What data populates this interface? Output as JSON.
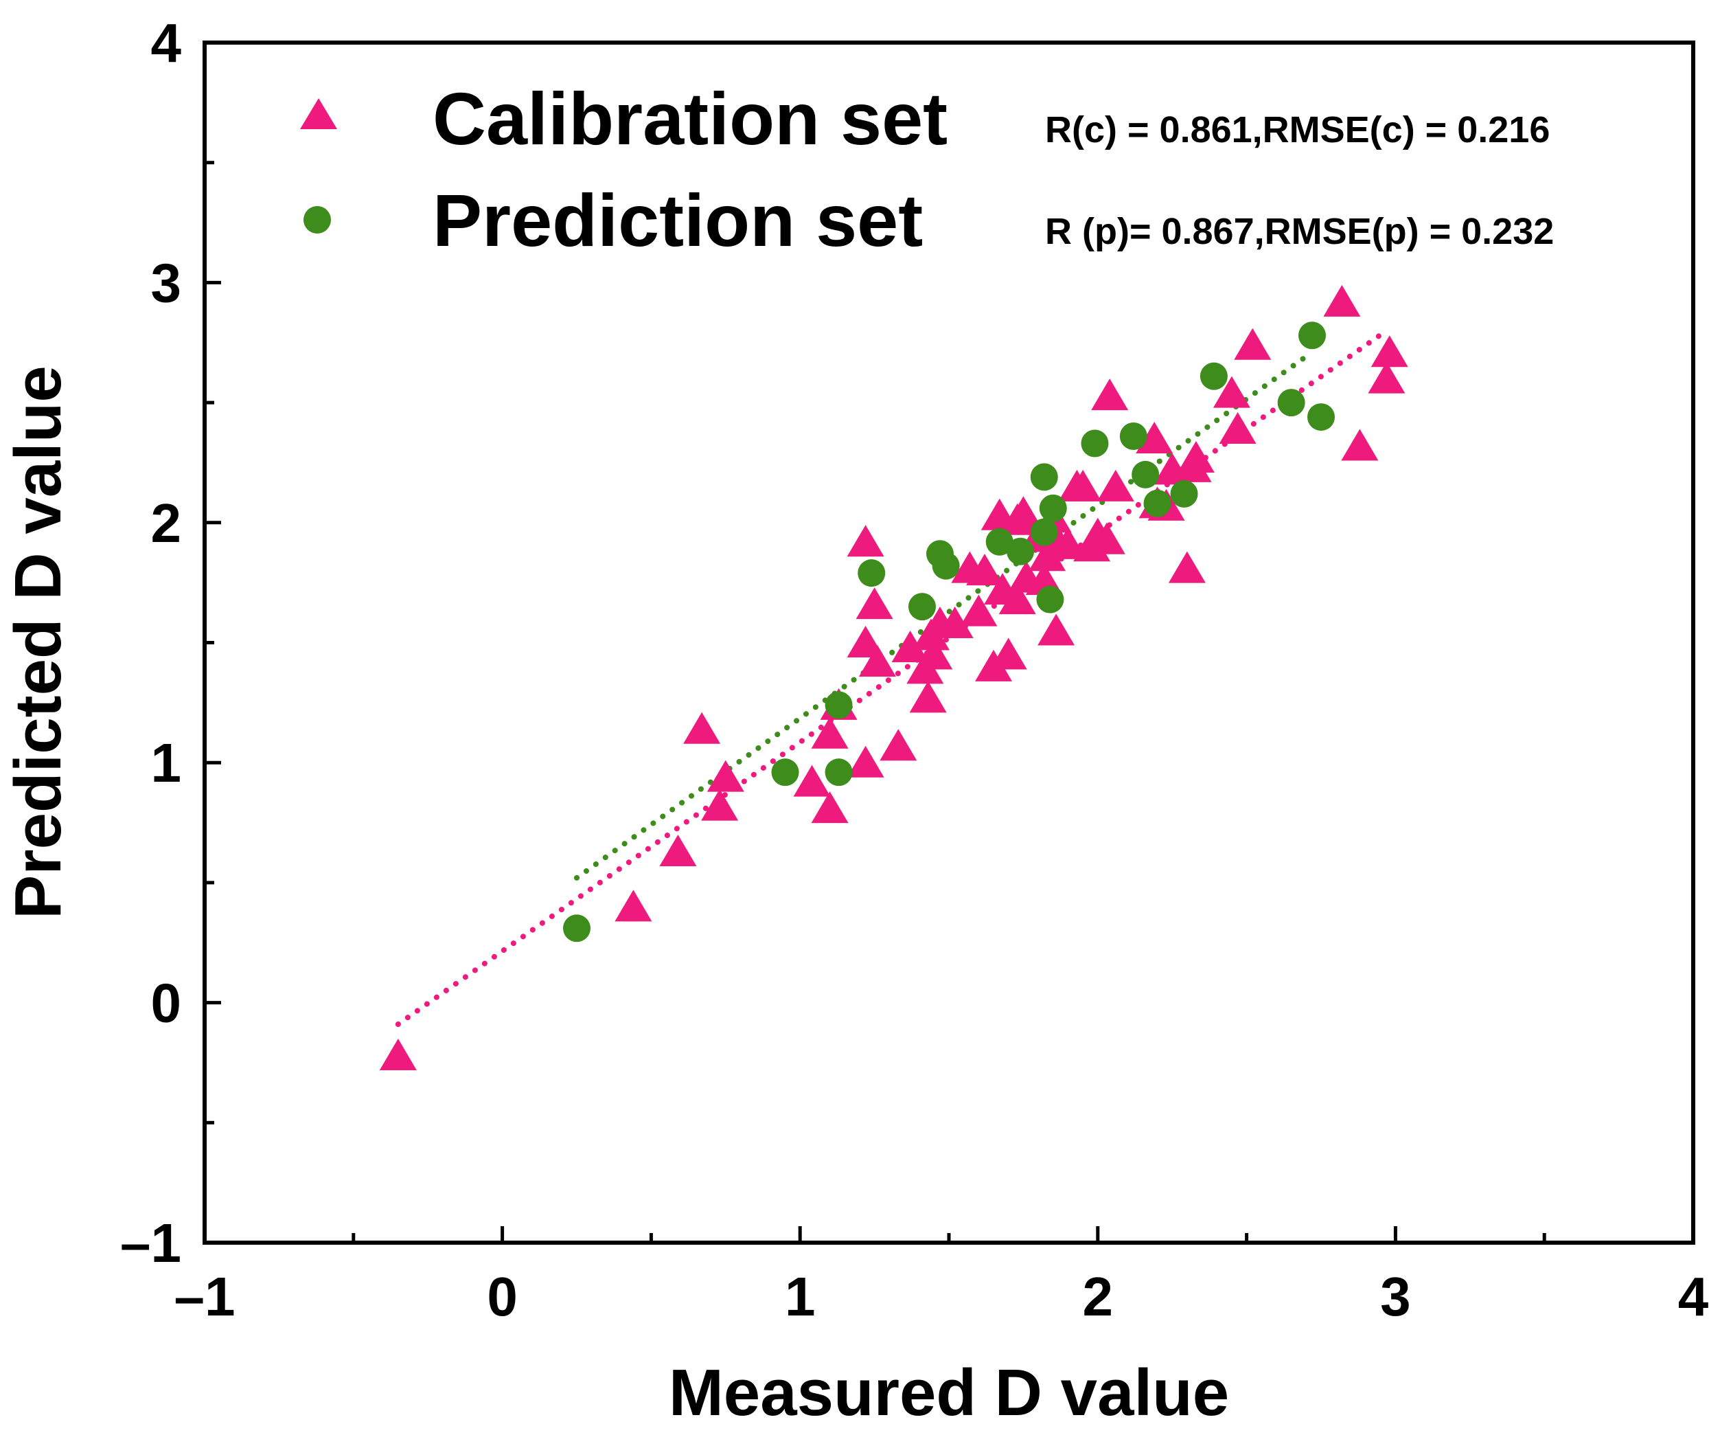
{
  "chart_data": {
    "type": "scatter",
    "xlabel": "Measured D value",
    "ylabel": "Predicted D value",
    "xlim": [
      -1,
      4
    ],
    "ylim": [
      -1,
      4
    ],
    "xticks": [
      -1,
      0,
      1,
      2,
      3,
      4
    ],
    "yticks": [
      -1,
      0,
      1,
      2,
      3,
      4
    ],
    "xtick_labels": [
      "–1",
      "0",
      "1",
      "2",
      "3",
      "4"
    ],
    "ytick_labels": [
      "–1",
      "0",
      "1",
      "2",
      "3",
      "4"
    ],
    "grid": false,
    "legend_position": "top-left",
    "series": [
      {
        "name": "Calibration set",
        "marker": "triangle",
        "color": "#ee1a7d",
        "stat_text": "R(c) = 0.861,RMSE(c) = 0.216",
        "fit_line": {
          "x": [
            -0.35,
            2.97
          ],
          "y": [
            -0.09,
            2.8
          ]
        },
        "x": [
          -0.35,
          0.44,
          0.59,
          0.67,
          0.73,
          0.75,
          1.04,
          1.1,
          1.1,
          1.13,
          1.22,
          1.22,
          1.22,
          1.25,
          1.26,
          1.33,
          1.37,
          1.42,
          1.43,
          1.44,
          1.45,
          1.47,
          1.52,
          1.57,
          1.6,
          1.62,
          1.65,
          1.67,
          1.68,
          1.7,
          1.73,
          1.73,
          1.75,
          1.76,
          1.8,
          1.82,
          1.83,
          1.85,
          1.86,
          1.87,
          1.9,
          1.93,
          1.95,
          1.98,
          2.0,
          2.03,
          2.04,
          2.06,
          2.19,
          2.2,
          2.23,
          2.25,
          2.3,
          2.32,
          2.33,
          2.45,
          2.47,
          2.52,
          2.82,
          2.88,
          2.97,
          2.98
        ],
        "y": [
          -0.23,
          0.39,
          0.62,
          1.13,
          0.81,
          0.93,
          0.91,
          0.8,
          1.11,
          1.23,
          0.99,
          1.49,
          1.91,
          1.65,
          1.41,
          1.06,
          1.47,
          1.38,
          1.26,
          1.52,
          1.44,
          1.57,
          1.57,
          1.8,
          1.62,
          1.79,
          1.39,
          2.02,
          1.71,
          1.44,
          1.67,
          2.0,
          2.03,
          1.76,
          1.93,
          1.75,
          1.85,
          2.01,
          1.54,
          1.9,
          1.9,
          2.14,
          2.14,
          1.89,
          1.94,
          1.92,
          2.52,
          2.14,
          2.34,
          2.07,
          2.06,
          2.21,
          1.8,
          2.22,
          2.26,
          2.53,
          2.38,
          2.73,
          2.91,
          2.31,
          2.59,
          2.7
        ]
      },
      {
        "name": "Prediction set",
        "marker": "circle",
        "color": "#3d8c1c",
        "stat_text": "R (p)= 0.867,RMSE(p) = 0.232",
        "fit_line": {
          "x": [
            0.25,
            2.72
          ],
          "y": [
            0.52,
            2.71
          ]
        },
        "x": [
          0.25,
          0.95,
          1.13,
          1.13,
          1.24,
          1.41,
          1.47,
          1.49,
          1.67,
          1.74,
          1.82,
          1.82,
          1.84,
          1.85,
          1.99,
          2.12,
          2.16,
          2.2,
          2.29,
          2.39,
          2.65,
          2.72,
          2.75
        ],
        "y": [
          0.31,
          0.96,
          1.24,
          0.96,
          1.79,
          1.65,
          1.87,
          1.82,
          1.92,
          1.88,
          2.19,
          1.96,
          1.68,
          2.06,
          2.33,
          2.36,
          2.2,
          2.08,
          2.12,
          2.61,
          2.5,
          2.78,
          2.44
        ]
      }
    ]
  }
}
